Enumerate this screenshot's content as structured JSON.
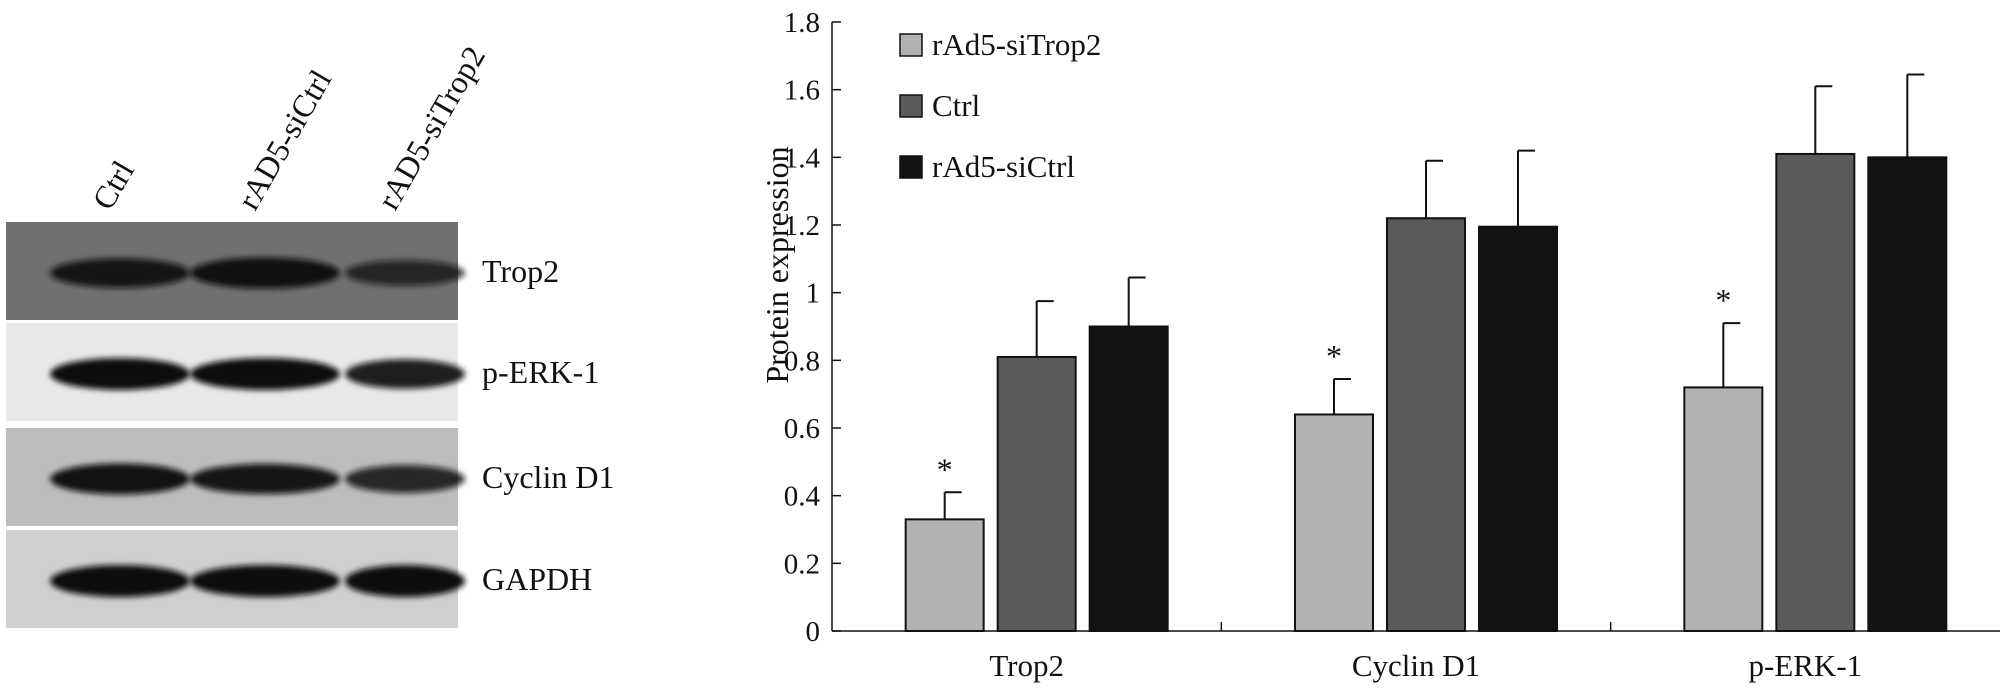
{
  "blot": {
    "lanes": [
      "Ctrl",
      "rAD5-siCtrl",
      "rAD5-siTrop2"
    ],
    "rows": [
      {
        "label": "Trop2",
        "background": "#707070",
        "band_intensity": [
          0.85,
          0.95,
          0.6
        ]
      },
      {
        "label": "p-ERK-1",
        "background": "#e8e8e8",
        "band_intensity": [
          1.0,
          1.0,
          0.85
        ]
      },
      {
        "label": "Cyclin D1",
        "background": "#bdbdbd",
        "band_intensity": [
          0.95,
          0.9,
          0.75
        ]
      },
      {
        "label": "GAPDH",
        "background": "#cfcfcf",
        "band_intensity": [
          1.0,
          1.0,
          1.0
        ]
      }
    ]
  },
  "chart_data": {
    "type": "bar",
    "categories": [
      "Trop2",
      "Cyclin D1",
      "p-ERK-1"
    ],
    "series": [
      {
        "name": "rAd5-siTrop2",
        "color": "#b2b2b2",
        "values": [
          0.33,
          0.64,
          0.72
        ],
        "errors": [
          0.08,
          0.105,
          0.19
        ],
        "significance": [
          "*",
          "*",
          "*"
        ]
      },
      {
        "name": "Ctrl",
        "color": "#5a5a5a",
        "values": [
          0.81,
          1.22,
          1.41
        ],
        "errors": [
          0.165,
          0.17,
          0.2
        ],
        "significance": [
          "",
          "",
          ""
        ]
      },
      {
        "name": "rAd5-siCtrl",
        "color": "#121212",
        "values": [
          0.9,
          1.195,
          1.4
        ],
        "errors": [
          0.145,
          0.225,
          0.245
        ],
        "significance": [
          "",
          "",
          ""
        ]
      }
    ],
    "ylabel": "Protein expression",
    "xlabel": "",
    "ylim": [
      0,
      1.8
    ],
    "yticks": [
      "0",
      "0.2",
      "0.4",
      "0.6",
      "0.8",
      "1",
      "1.2",
      "1.4",
      "1.6",
      "1.8"
    ],
    "legend_position": "top-left",
    "grid": false
  }
}
